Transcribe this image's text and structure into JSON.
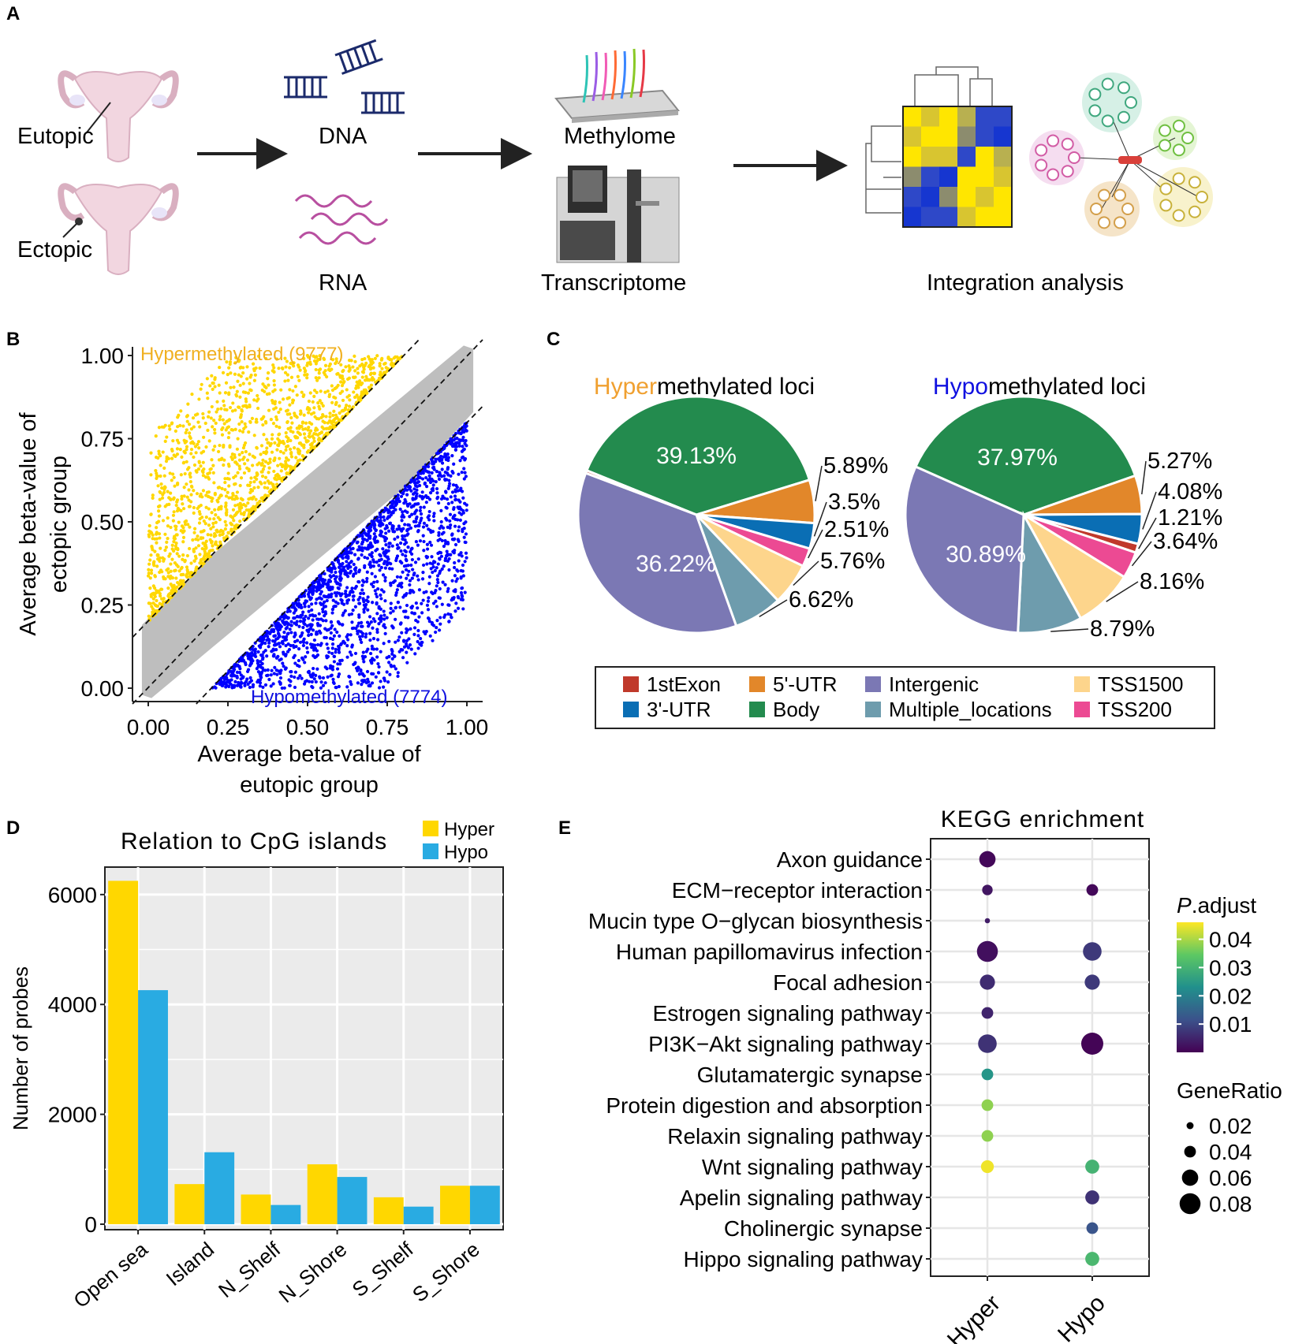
{
  "colors": {
    "hyper": "#FFD700",
    "hypo": "#0000FF",
    "neutral": "#BEBEBE",
    "hyper_title": "#F0A030",
    "hypo_title": "#1010E0",
    "bar_hyper": "#FFD700",
    "bar_hypo": "#29ABE2",
    "panel_bg": "#EBEBEB"
  },
  "panelA": {
    "label": "A",
    "eutopic": "Eutopic",
    "ectopic": "Ectopic",
    "dna": "DNA",
    "rna": "RNA",
    "methylome": "Methylome",
    "transcriptome": "Transcriptome",
    "integration": "Integration analysis"
  },
  "chart_data": [
    {
      "panel": "B",
      "type": "scatter",
      "hyper_label": "Hypermethylated (9777)",
      "hypo_label": "Hypomethylated (7774)",
      "xlabel_line1": "Average beta-value of",
      "xlabel_line2": "eutopic group",
      "ylabel_line1": "Average beta-value of",
      "ylabel_line2": "ectopic group",
      "xlim": [
        0,
        1
      ],
      "ylim": [
        0,
        1
      ],
      "ticks": [
        "0.00",
        "0.25",
        "0.50",
        "0.75",
        "1.00"
      ],
      "threshold_lines": [
        "y = x + 0.2",
        "y = x",
        "y = x - 0.2"
      ]
    },
    {
      "panel": "C",
      "type": "pie",
      "pies": [
        {
          "title_highlight": "Hyper",
          "title_rest": "methylated loci",
          "center_labels": [
            "39.13%",
            "36.22%"
          ],
          "slices": [
            {
              "category": "Body",
              "value": 39.13,
              "color": "#238B4E",
              "label": "39.13%"
            },
            {
              "category": "5'-UTR",
              "value": 5.89,
              "color": "#E2872A",
              "label": "5.89%"
            },
            {
              "category": "3'-UTR",
              "value": 3.5,
              "color": "#0A6EB4",
              "label": "3.5%"
            },
            {
              "category": "TSS200",
              "value": 2.51,
              "color": "#EC4A93",
              "label": "2.51%"
            },
            {
              "category": "TSS1500",
              "value": 5.76,
              "color": "#FDD58C",
              "label": "5.76%"
            },
            {
              "category": "Multiple_locations",
              "value": 6.62,
              "color": "#6E9CAD",
              "label": "6.62%"
            },
            {
              "category": "Intergenic",
              "value": 36.22,
              "color": "#7B78B4",
              "label": "36.22%"
            },
            {
              "category": "1stExon",
              "value": 0.37,
              "color": "#C0392B",
              "label": ""
            }
          ]
        },
        {
          "title_highlight": "Hypo",
          "title_rest": "methylated loci",
          "slices": [
            {
              "category": "Body",
              "value": 37.97,
              "color": "#238B4E",
              "label": "37.97%"
            },
            {
              "category": "5'-UTR",
              "value": 5.27,
              "color": "#E2872A",
              "label": "5.27%"
            },
            {
              "category": "3'-UTR",
              "value": 4.08,
              "color": "#0A6EB4",
              "label": "4.08%"
            },
            {
              "category": "1stExon",
              "value": 1.21,
              "color": "#C0392B",
              "label": "1.21%"
            },
            {
              "category": "TSS200",
              "value": 3.64,
              "color": "#EC4A93",
              "label": "3.64%"
            },
            {
              "category": "TSS1500",
              "value": 8.16,
              "color": "#FDD58C",
              "label": "8.16%"
            },
            {
              "category": "Multiple_locations",
              "value": 8.79,
              "color": "#6E9CAD",
              "label": "8.79%"
            },
            {
              "category": "Intergenic",
              "value": 30.89,
              "color": "#7B78B4",
              "label": "30.89%"
            }
          ]
        }
      ],
      "legend": [
        {
          "label": "1stExon",
          "color": "#C0392B"
        },
        {
          "label": "5'-UTR",
          "color": "#E2872A"
        },
        {
          "label": "Intergenic",
          "color": "#7B78B4"
        },
        {
          "label": "TSS1500",
          "color": "#FDD58C"
        },
        {
          "label": "3'-UTR",
          "color": "#0A6EB4"
        },
        {
          "label": "Body",
          "color": "#238B4E"
        },
        {
          "label": "Multiple_locations",
          "color": "#6E9CAD"
        },
        {
          "label": "TSS200",
          "color": "#EC4A93"
        }
      ]
    },
    {
      "panel": "D",
      "type": "bar",
      "title": "Relation to CpG islands",
      "ylabel": "Number of probes",
      "categories": [
        "Open sea",
        "Island",
        "N_Shelf",
        "N_Shore",
        "S_Shelf",
        "S_Shore"
      ],
      "series": [
        {
          "name": "Hyper",
          "values": [
            6250,
            730,
            540,
            1090,
            490,
            700
          ]
        },
        {
          "name": "Hypo",
          "values": [
            4260,
            1310,
            350,
            860,
            320,
            700
          ]
        }
      ],
      "ylim": [
        -100,
        6500
      ],
      "yticks": [
        0,
        2000,
        4000,
        6000
      ]
    },
    {
      "panel": "E",
      "type": "scatter",
      "title": "KEGG enrichment",
      "x": [
        "Hyper",
        "Hypo"
      ],
      "pathways": [
        "Axon guidance",
        "ECM−receptor interaction",
        "Mucin type O−glycan biosynthesis",
        "Human papillomavirus infection",
        "Focal adhesion",
        "Estrogen signaling pathway",
        "PI3K−Akt signaling pathway",
        "Glutamatergic synapse",
        "Protein digestion and absorption",
        "Relaxin signaling pathway",
        "Wnt signaling pathway",
        "Apelin signaling pathway",
        "Cholinergic synapse",
        "Hippo signaling pathway"
      ],
      "points": [
        {
          "pathway": 0,
          "group": "Hyper",
          "p_adjust": 0.001,
          "gene_ratio": 0.06
        },
        {
          "pathway": 1,
          "group": "Hyper",
          "p_adjust": 0.003,
          "gene_ratio": 0.035
        },
        {
          "pathway": 1,
          "group": "Hypo",
          "p_adjust": 0.001,
          "gene_ratio": 0.04
        },
        {
          "pathway": 2,
          "group": "Hyper",
          "p_adjust": 0.004,
          "gene_ratio": 0.012
        },
        {
          "pathway": 3,
          "group": "Hyper",
          "p_adjust": 0.002,
          "gene_ratio": 0.08
        },
        {
          "pathway": 3,
          "group": "Hypo",
          "p_adjust": 0.008,
          "gene_ratio": 0.07
        },
        {
          "pathway": 4,
          "group": "Hyper",
          "p_adjust": 0.006,
          "gene_ratio": 0.055
        },
        {
          "pathway": 4,
          "group": "Hypo",
          "p_adjust": 0.008,
          "gene_ratio": 0.055
        },
        {
          "pathway": 5,
          "group": "Hyper",
          "p_adjust": 0.005,
          "gene_ratio": 0.04
        },
        {
          "pathway": 6,
          "group": "Hyper",
          "p_adjust": 0.007,
          "gene_ratio": 0.07
        },
        {
          "pathway": 6,
          "group": "Hypo",
          "p_adjust": 0.0005,
          "gene_ratio": 0.085
        },
        {
          "pathway": 7,
          "group": "Hyper",
          "p_adjust": 0.024,
          "gene_ratio": 0.04
        },
        {
          "pathway": 8,
          "group": "Hyper",
          "p_adjust": 0.038,
          "gene_ratio": 0.04
        },
        {
          "pathway": 9,
          "group": "Hyper",
          "p_adjust": 0.038,
          "gene_ratio": 0.04
        },
        {
          "pathway": 10,
          "group": "Hyper",
          "p_adjust": 0.045,
          "gene_ratio": 0.045
        },
        {
          "pathway": 10,
          "group": "Hypo",
          "p_adjust": 0.03,
          "gene_ratio": 0.05
        },
        {
          "pathway": 11,
          "group": "Hypo",
          "p_adjust": 0.007,
          "gene_ratio": 0.05
        },
        {
          "pathway": 12,
          "group": "Hypo",
          "p_adjust": 0.012,
          "gene_ratio": 0.04
        },
        {
          "pathway": 13,
          "group": "Hypo",
          "p_adjust": 0.031,
          "gene_ratio": 0.05
        }
      ],
      "color_legend_title_italic": "P",
      "color_legend_title_rest": ".adjust",
      "color_ticks": [
        "0.04",
        "0.03",
        "0.02",
        "0.01"
      ],
      "color_tick_values": [
        0.04,
        0.03,
        0.02,
        0.01
      ],
      "color_range": [
        0,
        0.046
      ],
      "size_legend_title": "GeneRatio",
      "size_ticks": [
        "0.02",
        "0.04",
        "0.06",
        "0.08"
      ],
      "size_tick_values": [
        0.02,
        0.04,
        0.06,
        0.08
      ]
    }
  ],
  "labels": {
    "B": "B",
    "C": "C",
    "D": "D",
    "E": "E"
  }
}
